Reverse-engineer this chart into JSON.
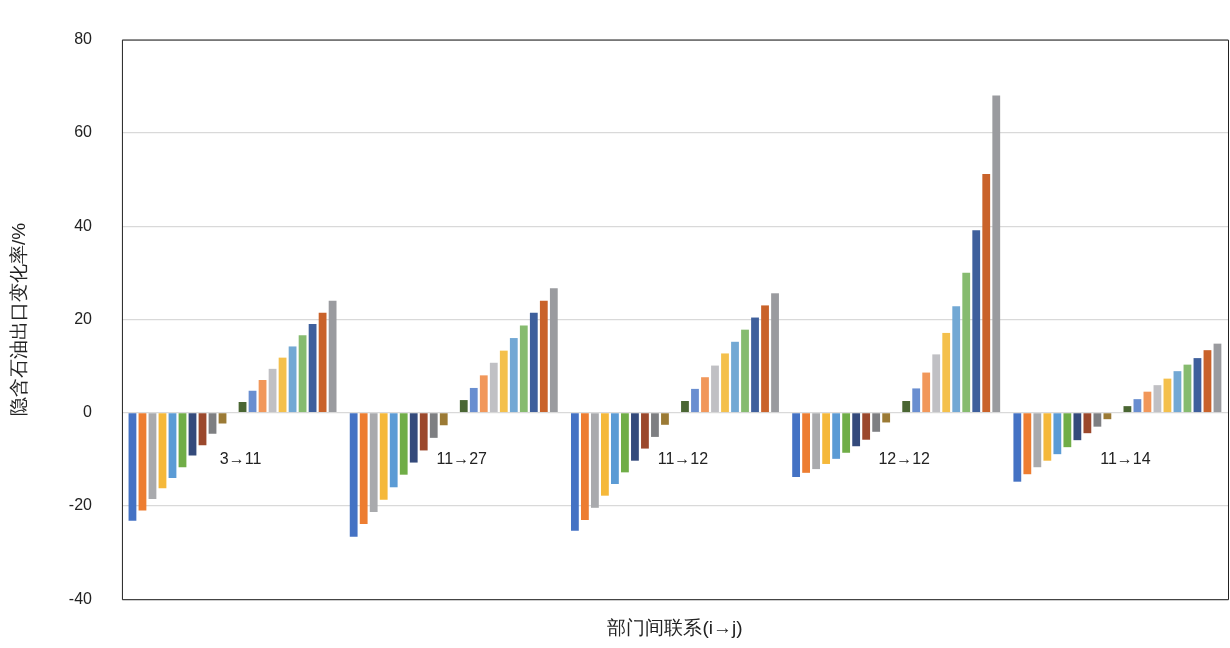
{
  "chart_data": {
    "type": "bar",
    "xlabel": "部门间联系(i→j)",
    "ylabel": "隐含石油出口变化率/%",
    "categories": [
      "3→11",
      "11→27",
      "11→12",
      "12→12",
      "11→14"
    ],
    "ylim": [
      -40,
      80
    ],
    "yticks": [
      -40,
      -20,
      0,
      20,
      40,
      60,
      80
    ],
    "grid": "y",
    "legend": false,
    "series": [
      {
        "color": "#4472c4",
        "values": [
          -23.2,
          -26.6,
          -25.3,
          -13.8,
          -14.8
        ]
      },
      {
        "color": "#ed7d31",
        "values": [
          -21.0,
          -23.9,
          -23.0,
          -12.9,
          -13.2
        ]
      },
      {
        "color": "#a9aaad",
        "values": [
          -18.5,
          -21.3,
          -20.4,
          -12.1,
          -11.7
        ]
      },
      {
        "color": "#f5b83a",
        "values": [
          -16.2,
          -18.7,
          -17.8,
          -11.0,
          -10.3
        ]
      },
      {
        "color": "#5b9bd5",
        "values": [
          -14.0,
          -16.0,
          -15.3,
          -9.9,
          -8.9
        ]
      },
      {
        "color": "#70ad47",
        "values": [
          -11.7,
          -13.3,
          -12.8,
          -8.6,
          -7.4
        ]
      },
      {
        "color": "#344a7b",
        "values": [
          -9.2,
          -10.7,
          -10.3,
          -7.2,
          -5.9
        ]
      },
      {
        "color": "#9b482c",
        "values": [
          -7.0,
          -8.1,
          -7.7,
          -5.8,
          -4.4
        ]
      },
      {
        "color": "#7e7f82",
        "values": [
          -4.5,
          -5.4,
          -5.2,
          -4.1,
          -3.0
        ]
      },
      {
        "color": "#9b7a35",
        "values": [
          -2.3,
          -2.7,
          -2.6,
          -2.1,
          -1.4
        ]
      },
      {
        "color": "#8a8a8a",
        "values": [
          0,
          0,
          0,
          0,
          0
        ]
      },
      {
        "color": "#4a6633",
        "values": [
          2.3,
          2.7,
          2.5,
          2.5,
          1.4
        ]
      },
      {
        "color": "#698ed0",
        "values": [
          4.7,
          5.3,
          5.1,
          5.2,
          2.9
        ]
      },
      {
        "color": "#f1975a",
        "values": [
          7.0,
          8.0,
          7.6,
          8.6,
          4.5
        ]
      },
      {
        "color": "#c0c0c4",
        "values": [
          9.4,
          10.7,
          10.1,
          12.5,
          5.9
        ]
      },
      {
        "color": "#f4c04c",
        "values": [
          11.8,
          13.3,
          12.7,
          17.1,
          7.3
        ]
      },
      {
        "color": "#72a8d4",
        "values": [
          14.2,
          16.0,
          15.2,
          22.8,
          8.9
        ]
      },
      {
        "color": "#86bb6f",
        "values": [
          16.6,
          18.7,
          17.8,
          30.0,
          10.3
        ]
      },
      {
        "color": "#3e5f9c",
        "values": [
          19.0,
          21.4,
          20.4,
          39.1,
          11.7
        ]
      },
      {
        "color": "#c9622a",
        "values": [
          21.4,
          24.0,
          23.0,
          51.2,
          13.4
        ]
      },
      {
        "color": "#9a9b9f",
        "values": [
          24.0,
          26.7,
          25.6,
          68.0,
          14.8
        ]
      }
    ]
  }
}
